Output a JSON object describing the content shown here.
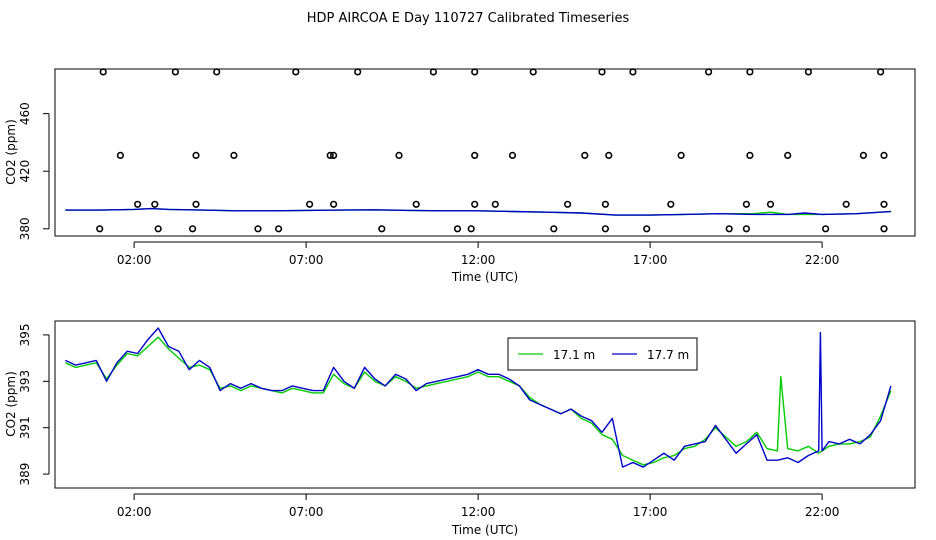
{
  "title": "HDP AIRCOA E  Day 110727  Calibrated Timeseries",
  "chart_data": [
    {
      "type": "scatter",
      "panel": "top",
      "xlabel": "Time (UTC)",
      "ylabel": "CO2 (ppm)",
      "x_ticks": [
        {
          "value": 2,
          "label": "02:00"
        },
        {
          "value": 7,
          "label": "07:00"
        },
        {
          "value": 12,
          "label": "12:00"
        },
        {
          "value": 17,
          "label": "17:00"
        },
        {
          "value": 22,
          "label": "22:00"
        }
      ],
      "y_ticks": [
        {
          "value": 380,
          "label": "380"
        },
        {
          "value": 420,
          "label": "420"
        },
        {
          "value": 460,
          "label": "460"
        }
      ],
      "xlim": [
        -0.3,
        24.7
      ],
      "ylim": [
        375,
        491
      ],
      "grid": false,
      "markers": {
        "style": "open-circle",
        "x": [
          1.0,
          2.1,
          1.6,
          1.1,
          2.7,
          3.8,
          3.8,
          3.2,
          3.7,
          2.6,
          4.9,
          4.4,
          5.6,
          7.1,
          7.7,
          6.7,
          6.2,
          7.8,
          7.8,
          8.5,
          9.2,
          10.2,
          9.7,
          10.7,
          11.4,
          11.9,
          11.9,
          11.9,
          11.8,
          12.5,
          13.0,
          13.6,
          14.2,
          14.6,
          15.1,
          15.6,
          15.7,
          15.7,
          15.8,
          16.5,
          16.9,
          17.6,
          17.9,
          18.7,
          19.3,
          19.8,
          19.9,
          19.9,
          19.8,
          20.5,
          21.0,
          21.6,
          22.1,
          22.7,
          23.2,
          23.7,
          23.8,
          23.8,
          23.8
        ]
      },
      "series": [
        {
          "name": "17.1 m",
          "color": "#00cc00",
          "x": [
            0,
            1,
            2,
            2.5,
            3,
            4,
            5,
            6,
            7,
            8,
            9,
            10,
            11,
            12,
            13,
            14,
            15,
            16,
            17,
            18,
            19,
            20,
            20.5,
            21,
            22,
            23,
            24
          ],
          "y": [
            393,
            393,
            393.5,
            394,
            393.5,
            393,
            392.5,
            392.5,
            392.8,
            393,
            393.2,
            392.8,
            392.5,
            392.5,
            392,
            391.5,
            391,
            389.5,
            389.5,
            390,
            390.5,
            390.5,
            391.5,
            390,
            390,
            390.5,
            392
          ]
        },
        {
          "name": "17.7 m",
          "color": "#0000cc",
          "x": [
            0,
            1,
            2,
            2.5,
            3,
            4,
            5,
            6,
            7,
            8,
            9,
            10,
            11,
            12,
            13,
            14,
            15,
            16,
            17,
            18,
            19,
            20,
            21,
            21.5,
            22,
            23,
            24
          ],
          "y": [
            393,
            393,
            393.5,
            394,
            393.5,
            393,
            392.5,
            392.5,
            392.8,
            393,
            393.2,
            392.8,
            392.5,
            392.5,
            392,
            391.5,
            391,
            389.5,
            389.5,
            390,
            390.5,
            390,
            390,
            391,
            390,
            390.5,
            392
          ]
        }
      ]
    },
    {
      "type": "line",
      "panel": "bottom",
      "xlabel": "Time (UTC)",
      "ylabel": "CO2 (ppm)",
      "x_ticks": [
        {
          "value": 2,
          "label": "02:00"
        },
        {
          "value": 7,
          "label": "07:00"
        },
        {
          "value": 12,
          "label": "12:00"
        },
        {
          "value": 17,
          "label": "17:00"
        },
        {
          "value": 22,
          "label": "22:00"
        }
      ],
      "y_ticks": [
        {
          "value": 389,
          "label": "389"
        },
        {
          "value": 391,
          "label": "391"
        },
        {
          "value": 393,
          "label": "393"
        },
        {
          "value": 395,
          "label": "395"
        }
      ],
      "xlim": [
        -0.3,
        24.7
      ],
      "ylim": [
        388.4,
        395.6
      ],
      "grid": false,
      "legend": {
        "placement": "top-center"
      },
      "series": [
        {
          "name": "17.1 m",
          "color": "#00cc00",
          "x": [
            0.0,
            0.3,
            0.6,
            0.9,
            1.2,
            1.5,
            1.8,
            2.1,
            2.4,
            2.7,
            3.0,
            3.3,
            3.6,
            3.9,
            4.2,
            4.5,
            4.8,
            5.1,
            5.4,
            5.7,
            6.0,
            6.3,
            6.6,
            6.9,
            7.2,
            7.5,
            7.8,
            8.1,
            8.4,
            8.7,
            9.0,
            9.3,
            9.6,
            9.9,
            10.2,
            10.5,
            10.8,
            11.1,
            11.4,
            11.7,
            12.0,
            12.3,
            12.6,
            12.9,
            13.2,
            13.5,
            13.8,
            14.1,
            14.4,
            14.7,
            15.0,
            15.3,
            15.6,
            15.9,
            16.2,
            16.5,
            16.8,
            17.1,
            17.4,
            17.7,
            18.0,
            18.3,
            18.6,
            18.9,
            19.2,
            19.5,
            19.8,
            20.1,
            20.4,
            20.7,
            20.8,
            21.0,
            21.3,
            21.6,
            21.9,
            22.2,
            22.5,
            22.8,
            23.1,
            23.4,
            23.7,
            24.0
          ],
          "y": [
            393.8,
            393.6,
            393.7,
            393.8,
            393.1,
            393.7,
            394.2,
            394.1,
            394.5,
            394.9,
            394.4,
            394.0,
            393.6,
            393.7,
            393.5,
            392.7,
            392.8,
            392.6,
            392.8,
            392.7,
            392.6,
            392.5,
            392.7,
            392.6,
            392.5,
            392.5,
            393.3,
            392.9,
            392.7,
            393.4,
            393.0,
            392.8,
            393.2,
            393.0,
            392.7,
            392.8,
            392.9,
            393.0,
            393.1,
            393.2,
            393.4,
            393.2,
            393.2,
            393.0,
            392.8,
            392.3,
            392.0,
            391.8,
            391.6,
            391.8,
            391.4,
            391.2,
            390.7,
            390.5,
            389.8,
            389.6,
            389.4,
            389.5,
            389.7,
            389.8,
            390.1,
            390.2,
            390.5,
            391.0,
            390.6,
            390.2,
            390.4,
            390.8,
            390.1,
            390.0,
            393.2,
            390.1,
            390.0,
            390.2,
            389.9,
            390.2,
            390.3,
            390.3,
            390.4,
            390.6,
            391.5,
            392.6
          ]
        },
        {
          "name": "17.7 m",
          "color": "#0000cc",
          "x": [
            0.0,
            0.3,
            0.6,
            0.9,
            1.2,
            1.5,
            1.8,
            2.1,
            2.4,
            2.7,
            3.0,
            3.3,
            3.6,
            3.9,
            4.2,
            4.5,
            4.8,
            5.1,
            5.4,
            5.7,
            6.0,
            6.3,
            6.6,
            6.9,
            7.2,
            7.5,
            7.8,
            8.1,
            8.4,
            8.7,
            9.0,
            9.3,
            9.6,
            9.9,
            10.2,
            10.5,
            10.8,
            11.1,
            11.4,
            11.7,
            12.0,
            12.3,
            12.6,
            12.9,
            13.2,
            13.5,
            13.8,
            14.1,
            14.4,
            14.7,
            15.0,
            15.3,
            15.6,
            15.9,
            16.2,
            16.5,
            16.8,
            17.1,
            17.4,
            17.7,
            18.0,
            18.3,
            18.6,
            18.9,
            19.2,
            19.5,
            19.8,
            20.1,
            20.4,
            20.7,
            21.0,
            21.3,
            21.6,
            21.9,
            21.95,
            22.0,
            22.2,
            22.5,
            22.8,
            23.1,
            23.4,
            23.7,
            24.0
          ],
          "y": [
            393.9,
            393.7,
            393.8,
            393.9,
            393.0,
            393.8,
            394.3,
            394.2,
            394.8,
            395.3,
            394.5,
            394.3,
            393.5,
            393.9,
            393.6,
            392.6,
            392.9,
            392.7,
            392.9,
            392.7,
            392.6,
            392.6,
            392.8,
            392.7,
            392.6,
            392.6,
            393.6,
            393.0,
            392.7,
            393.6,
            393.1,
            392.8,
            393.3,
            393.1,
            392.6,
            392.9,
            393.0,
            393.1,
            393.2,
            393.3,
            393.5,
            393.3,
            393.3,
            393.1,
            392.8,
            392.2,
            392.0,
            391.8,
            391.6,
            391.8,
            391.5,
            391.3,
            390.8,
            391.4,
            389.3,
            389.5,
            389.3,
            389.6,
            389.9,
            389.6,
            390.2,
            390.3,
            390.4,
            391.1,
            390.5,
            389.9,
            390.3,
            390.7,
            389.6,
            389.6,
            389.7,
            389.5,
            389.8,
            390.0,
            395.1,
            390.0,
            390.4,
            390.3,
            390.5,
            390.3,
            390.7,
            391.3,
            392.8
          ]
        }
      ]
    }
  ]
}
